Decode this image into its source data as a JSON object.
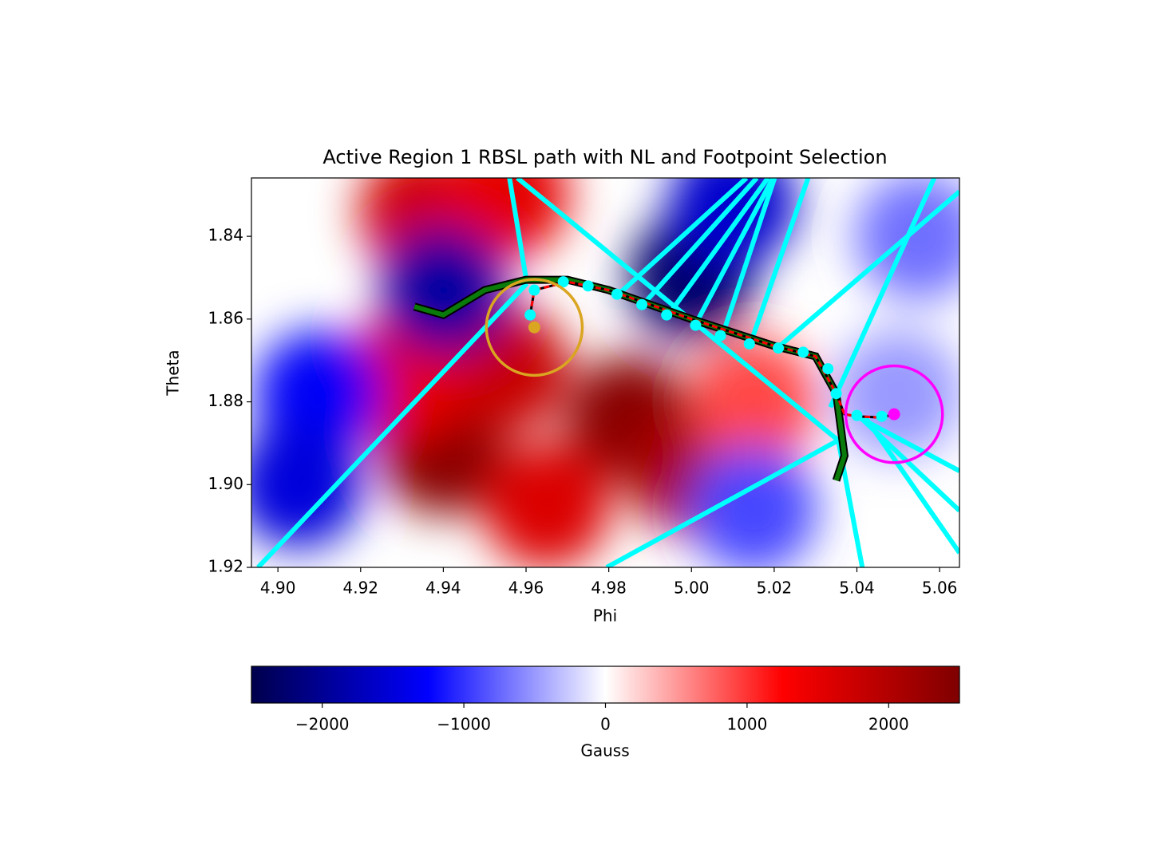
{
  "chart_data": {
    "type": "heatmap",
    "title": "Active Region 1 RBSL path with NL and Footpoint Selection",
    "x_label": "Phi",
    "y_label": "Theta",
    "xlim": [
      4.8936,
      5.0648
    ],
    "ylim": [
      1.92,
      1.8259
    ],
    "xticks": [
      {
        "value": 4.9,
        "label": "4.90"
      },
      {
        "value": 4.92,
        "label": "4.92"
      },
      {
        "value": 4.94,
        "label": "4.94"
      },
      {
        "value": 4.96,
        "label": "4.96"
      },
      {
        "value": 4.98,
        "label": "4.98"
      },
      {
        "value": 5.0,
        "label": "5.00"
      },
      {
        "value": 5.02,
        "label": "5.02"
      },
      {
        "value": 5.04,
        "label": "5.04"
      },
      {
        "value": 5.06,
        "label": "5.06"
      }
    ],
    "yticks": [
      1.84,
      1.86,
      1.88,
      {
        "value": 1.9,
        "label": "1.90"
      },
      1.92
    ],
    "field": [
      {
        "phi": 4.94,
        "theta": 1.892,
        "value": 2400
      },
      {
        "phi": 4.985,
        "theta": 1.884,
        "value": 2400
      },
      {
        "phi": 5.0,
        "theta": 1.897,
        "value": 2100
      },
      {
        "phi": 4.955,
        "theta": 1.872,
        "value": 1800
      },
      {
        "phi": 4.965,
        "theta": 1.905,
        "value": 1600
      },
      {
        "phi": 4.93,
        "theta": 1.875,
        "value": 1500
      },
      {
        "phi": 5.015,
        "theta": 1.88,
        "value": 900
      },
      {
        "phi": 4.935,
        "theta": 1.834,
        "value": 1700
      },
      {
        "phi": 4.955,
        "theta": 1.83,
        "value": 1500
      },
      {
        "phi": 4.94,
        "theta": 1.853,
        "value": -1900
      },
      {
        "phi": 5.0,
        "theta": 1.85,
        "value": -2300
      },
      {
        "phi": 5.01,
        "theta": 1.832,
        "value": -1600
      },
      {
        "phi": 4.91,
        "theta": 1.878,
        "value": -1300
      },
      {
        "phi": 4.905,
        "theta": 1.9,
        "value": -1500
      },
      {
        "phi": 5.055,
        "theta": 1.84,
        "value": -700
      },
      {
        "phi": 5.015,
        "theta": 1.906,
        "value": -900
      },
      {
        "phi": 5.05,
        "theta": 1.878,
        "value": -500
      }
    ],
    "path": {
      "color": "#0a7a0a",
      "x": [
        4.933,
        4.94,
        4.95,
        4.96,
        4.97,
        4.98,
        5.0,
        5.02,
        5.03,
        5.035,
        5.037,
        5.035
      ],
      "y": [
        1.857,
        1.859,
        1.853,
        1.8505,
        1.8505,
        1.853,
        1.86,
        1.8665,
        1.869,
        1.878,
        1.893,
        1.899
      ]
    },
    "nl_path": {
      "color": "#ff0000",
      "x": [
        4.961,
        4.962,
        4.97,
        4.98,
        5.0,
        5.02,
        5.03,
        5.035,
        5.037,
        5.04,
        5.046,
        5.049
      ],
      "y": [
        1.859,
        1.853,
        1.851,
        1.853,
        1.86,
        1.8665,
        1.869,
        1.878,
        1.883,
        1.8835,
        1.8838,
        1.883
      ]
    },
    "rays_color": "#00ffff",
    "rays": [
      {
        "x": [
          4.956,
          4.9602
        ],
        "y": [
          1.8259,
          1.8514
        ]
      },
      {
        "x": [
          4.9579,
          5.0355
        ],
        "y": [
          1.8259,
          1.8893
        ]
      },
      {
        "x": [
          4.8952,
          4.9602
        ],
        "y": [
          1.92,
          1.8514
        ]
      },
      {
        "x": [
          5.0355,
          4.9795
        ],
        "y": [
          1.8893,
          1.92
        ]
      },
      {
        "x": [
          5.0587,
          5.0336
        ],
        "y": [
          1.8259,
          1.8813
        ]
      },
      {
        "x": [
          5.0648,
          5.021
        ],
        "y": [
          1.8292,
          1.8668
        ]
      },
      {
        "x": [
          5.0413,
          5.0355
        ],
        "y": [
          1.92,
          1.8893
        ]
      },
      {
        "x": [
          5.0394,
          5.0648
        ],
        "y": [
          1.8832,
          1.8967
        ]
      },
      {
        "x": [
          5.04,
          5.0648
        ],
        "y": [
          1.883,
          1.9063
        ]
      },
      {
        "x": [
          5.0422,
          5.0648
        ],
        "y": [
          1.884,
          1.9165
        ]
      },
      {
        "x": [
          4.9818,
          5.0133
        ],
        "y": [
          1.8545,
          1.8259
        ]
      },
      {
        "x": [
          4.988,
          5.0158
        ],
        "y": [
          1.8568,
          1.8259
        ]
      },
      {
        "x": [
          4.9942,
          5.0185
        ],
        "y": [
          1.8593,
          1.8259
        ]
      },
      {
        "x": [
          5.0008,
          5.0197
        ],
        "y": [
          1.8616,
          1.8259
        ]
      },
      {
        "x": [
          5.0075,
          5.0201
        ],
        "y": [
          1.8639,
          1.8259
        ]
      },
      {
        "x": [
          5.0143,
          5.0282
        ],
        "y": [
          1.8658,
          1.8259
        ]
      }
    ],
    "footpoints": {
      "color": "#00ffff",
      "x": [
        4.961,
        4.962,
        4.969,
        4.975,
        4.982,
        4.988,
        4.994,
        5.001,
        5.007,
        5.014,
        5.021,
        5.027,
        5.033,
        5.035,
        5.04,
        5.046
      ],
      "y": [
        1.859,
        1.853,
        1.851,
        1.852,
        1.854,
        1.8565,
        1.859,
        1.8615,
        1.864,
        1.866,
        1.867,
        1.868,
        1.872,
        1.878,
        1.8833,
        1.8835
      ]
    },
    "selections": [
      {
        "color": "#daa520",
        "x": 4.962,
        "y": 1.862,
        "radius": 0.0116
      },
      {
        "color": "#ff00ff",
        "x": 5.049,
        "y": 1.883,
        "radius": 0.0117
      }
    ],
    "colorbar": {
      "label": "Gauss",
      "lim": [
        -2500,
        2500
      ],
      "ticks": [
        {
          "value": -2000,
          "label": "−2000"
        },
        {
          "value": -1000,
          "label": "−1000"
        },
        0,
        1000,
        2000
      ]
    }
  }
}
